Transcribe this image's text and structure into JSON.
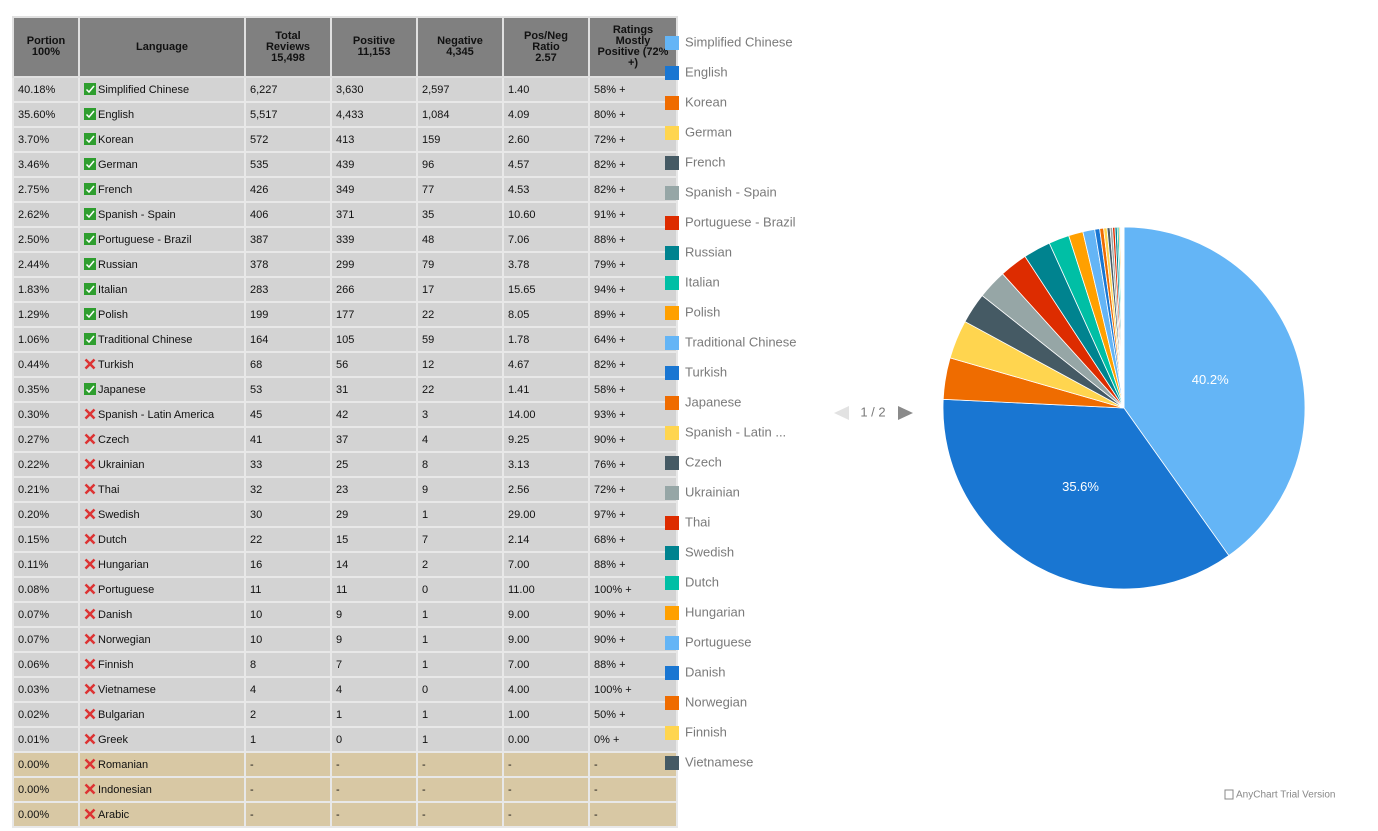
{
  "table": {
    "header": [
      "Portion\n100%",
      "Language",
      "Total\nReviews\n15,498",
      "Positive\n11,153",
      "Negative\n4,345",
      "Pos/Neg\nRatio\n2.57",
      "Ratings\nMostly\nPositive (72%\n+)"
    ],
    "rows": [
      {
        "cells": [
          "40.18%",
          "Simplified Chinese",
          "6,227",
          "3,630",
          "2,597",
          "1.40",
          "58% +"
        ],
        "supported": true
      },
      {
        "cells": [
          "35.60%",
          "English",
          "5,517",
          "4,433",
          "1,084",
          "4.09",
          "80% +"
        ],
        "supported": true
      },
      {
        "cells": [
          "3.70%",
          "Korean",
          "572",
          "413",
          "159",
          "2.60",
          "72% +"
        ],
        "supported": true
      },
      {
        "cells": [
          "3.46%",
          "German",
          "535",
          "439",
          "96",
          "4.57",
          "82% +"
        ],
        "supported": true
      },
      {
        "cells": [
          "2.75%",
          "French",
          "426",
          "349",
          "77",
          "4.53",
          "82% +"
        ],
        "supported": true
      },
      {
        "cells": [
          "2.62%",
          "Spanish - Spain",
          "406",
          "371",
          "35",
          "10.60",
          "91% +"
        ],
        "supported": true
      },
      {
        "cells": [
          "2.50%",
          "Portuguese - Brazil",
          "387",
          "339",
          "48",
          "7.06",
          "88% +"
        ],
        "supported": true
      },
      {
        "cells": [
          "2.44%",
          "Russian",
          "378",
          "299",
          "79",
          "3.78",
          "79% +"
        ],
        "supported": true
      },
      {
        "cells": [
          "1.83%",
          "Italian",
          "283",
          "266",
          "17",
          "15.65",
          "94% +"
        ],
        "supported": true
      },
      {
        "cells": [
          "1.29%",
          "Polish",
          "199",
          "177",
          "22",
          "8.05",
          "89% +"
        ],
        "supported": true
      },
      {
        "cells": [
          "1.06%",
          "Traditional Chinese",
          "164",
          "105",
          "59",
          "1.78",
          "64% +"
        ],
        "supported": true
      },
      {
        "cells": [
          "0.44%",
          "Turkish",
          "68",
          "56",
          "12",
          "4.67",
          "82% +"
        ],
        "supported": false
      },
      {
        "cells": [
          "0.35%",
          "Japanese",
          "53",
          "31",
          "22",
          "1.41",
          "58% +"
        ],
        "supported": true
      },
      {
        "cells": [
          "0.30%",
          "Spanish - Latin America",
          "45",
          "42",
          "3",
          "14.00",
          "93% +"
        ],
        "supported": false
      },
      {
        "cells": [
          "0.27%",
          "Czech",
          "41",
          "37",
          "4",
          "9.25",
          "90% +"
        ],
        "supported": false
      },
      {
        "cells": [
          "0.22%",
          "Ukrainian",
          "33",
          "25",
          "8",
          "3.13",
          "76% +"
        ],
        "supported": false
      },
      {
        "cells": [
          "0.21%",
          "Thai",
          "32",
          "23",
          "9",
          "2.56",
          "72% +"
        ],
        "supported": false
      },
      {
        "cells": [
          "0.20%",
          "Swedish",
          "30",
          "29",
          "1",
          "29.00",
          "97% +"
        ],
        "supported": false
      },
      {
        "cells": [
          "0.15%",
          "Dutch",
          "22",
          "15",
          "7",
          "2.14",
          "68% +"
        ],
        "supported": false
      },
      {
        "cells": [
          "0.11%",
          "Hungarian",
          "16",
          "14",
          "2",
          "7.00",
          "88% +"
        ],
        "supported": false
      },
      {
        "cells": [
          "0.08%",
          "Portuguese",
          "11",
          "11",
          "0",
          "11.00",
          "100% +"
        ],
        "supported": false
      },
      {
        "cells": [
          "0.07%",
          "Danish",
          "10",
          "9",
          "1",
          "9.00",
          "90% +"
        ],
        "supported": false
      },
      {
        "cells": [
          "0.07%",
          "Norwegian",
          "10",
          "9",
          "1",
          "9.00",
          "90% +"
        ],
        "supported": false
      },
      {
        "cells": [
          "0.06%",
          "Finnish",
          "8",
          "7",
          "1",
          "7.00",
          "88% +"
        ],
        "supported": false
      },
      {
        "cells": [
          "0.03%",
          "Vietnamese",
          "4",
          "4",
          "0",
          "4.00",
          "100% +"
        ],
        "supported": false
      },
      {
        "cells": [
          "0.02%",
          "Bulgarian",
          "2",
          "1",
          "1",
          "1.00",
          "50% +"
        ],
        "supported": false
      },
      {
        "cells": [
          "0.01%",
          "Greek",
          "1",
          "0",
          "1",
          "0.00",
          "0% +"
        ],
        "supported": false
      },
      {
        "cells": [
          "0.00%",
          "Romanian",
          "-",
          "-",
          "-",
          "-",
          "-"
        ],
        "supported": false,
        "shaded": true
      },
      {
        "cells": [
          "0.00%",
          "Indonesian",
          "-",
          "-",
          "-",
          "-",
          "-"
        ],
        "supported": false,
        "shaded": true
      },
      {
        "cells": [
          "0.00%",
          "Arabic",
          "-",
          "-",
          "-",
          "-",
          "-"
        ],
        "supported": false,
        "shaded": true
      }
    ]
  },
  "chart_data": {
    "type": "pie",
    "categories": [
      "Simplified Chinese",
      "English",
      "Korean",
      "German",
      "French",
      "Spanish - Spain",
      "Portuguese - Brazil",
      "Russian",
      "Italian",
      "Polish",
      "Traditional Chinese",
      "Turkish",
      "Japanese",
      "Spanish - Latin ...",
      "Czech",
      "Ukrainian",
      "Thai",
      "Swedish",
      "Dutch",
      "Hungarian",
      "Portuguese",
      "Danish",
      "Norwegian",
      "Finnish",
      "Vietnamese",
      null,
      null
    ],
    "values": [
      40.18,
      35.6,
      3.7,
      3.46,
      2.75,
      2.62,
      2.5,
      2.44,
      1.83,
      1.29,
      1.06,
      0.44,
      0.35,
      0.3,
      0.27,
      0.22,
      0.21,
      0.2,
      0.15,
      0.11,
      0.08,
      0.07,
      0.07,
      0.06,
      0.03,
      0.02,
      0.01
    ],
    "value_labels": [
      "40.2%",
      "35.6%",
      null,
      null,
      null,
      null,
      null,
      null,
      null,
      null,
      null,
      null,
      null,
      null,
      null,
      null,
      null,
      null,
      null,
      null,
      null,
      null,
      null,
      null,
      null,
      null,
      null
    ],
    "palette": [
      "#64b5f6",
      "#1976d2",
      "#ef6c00",
      "#ffd54f",
      "#455a64",
      "#96a6a6",
      "#dd2c00",
      "#00838f",
      "#00bfa5",
      "#ffa000"
    ],
    "legend_page": "1 / 2",
    "credit": "AnyChart Trial Version"
  }
}
